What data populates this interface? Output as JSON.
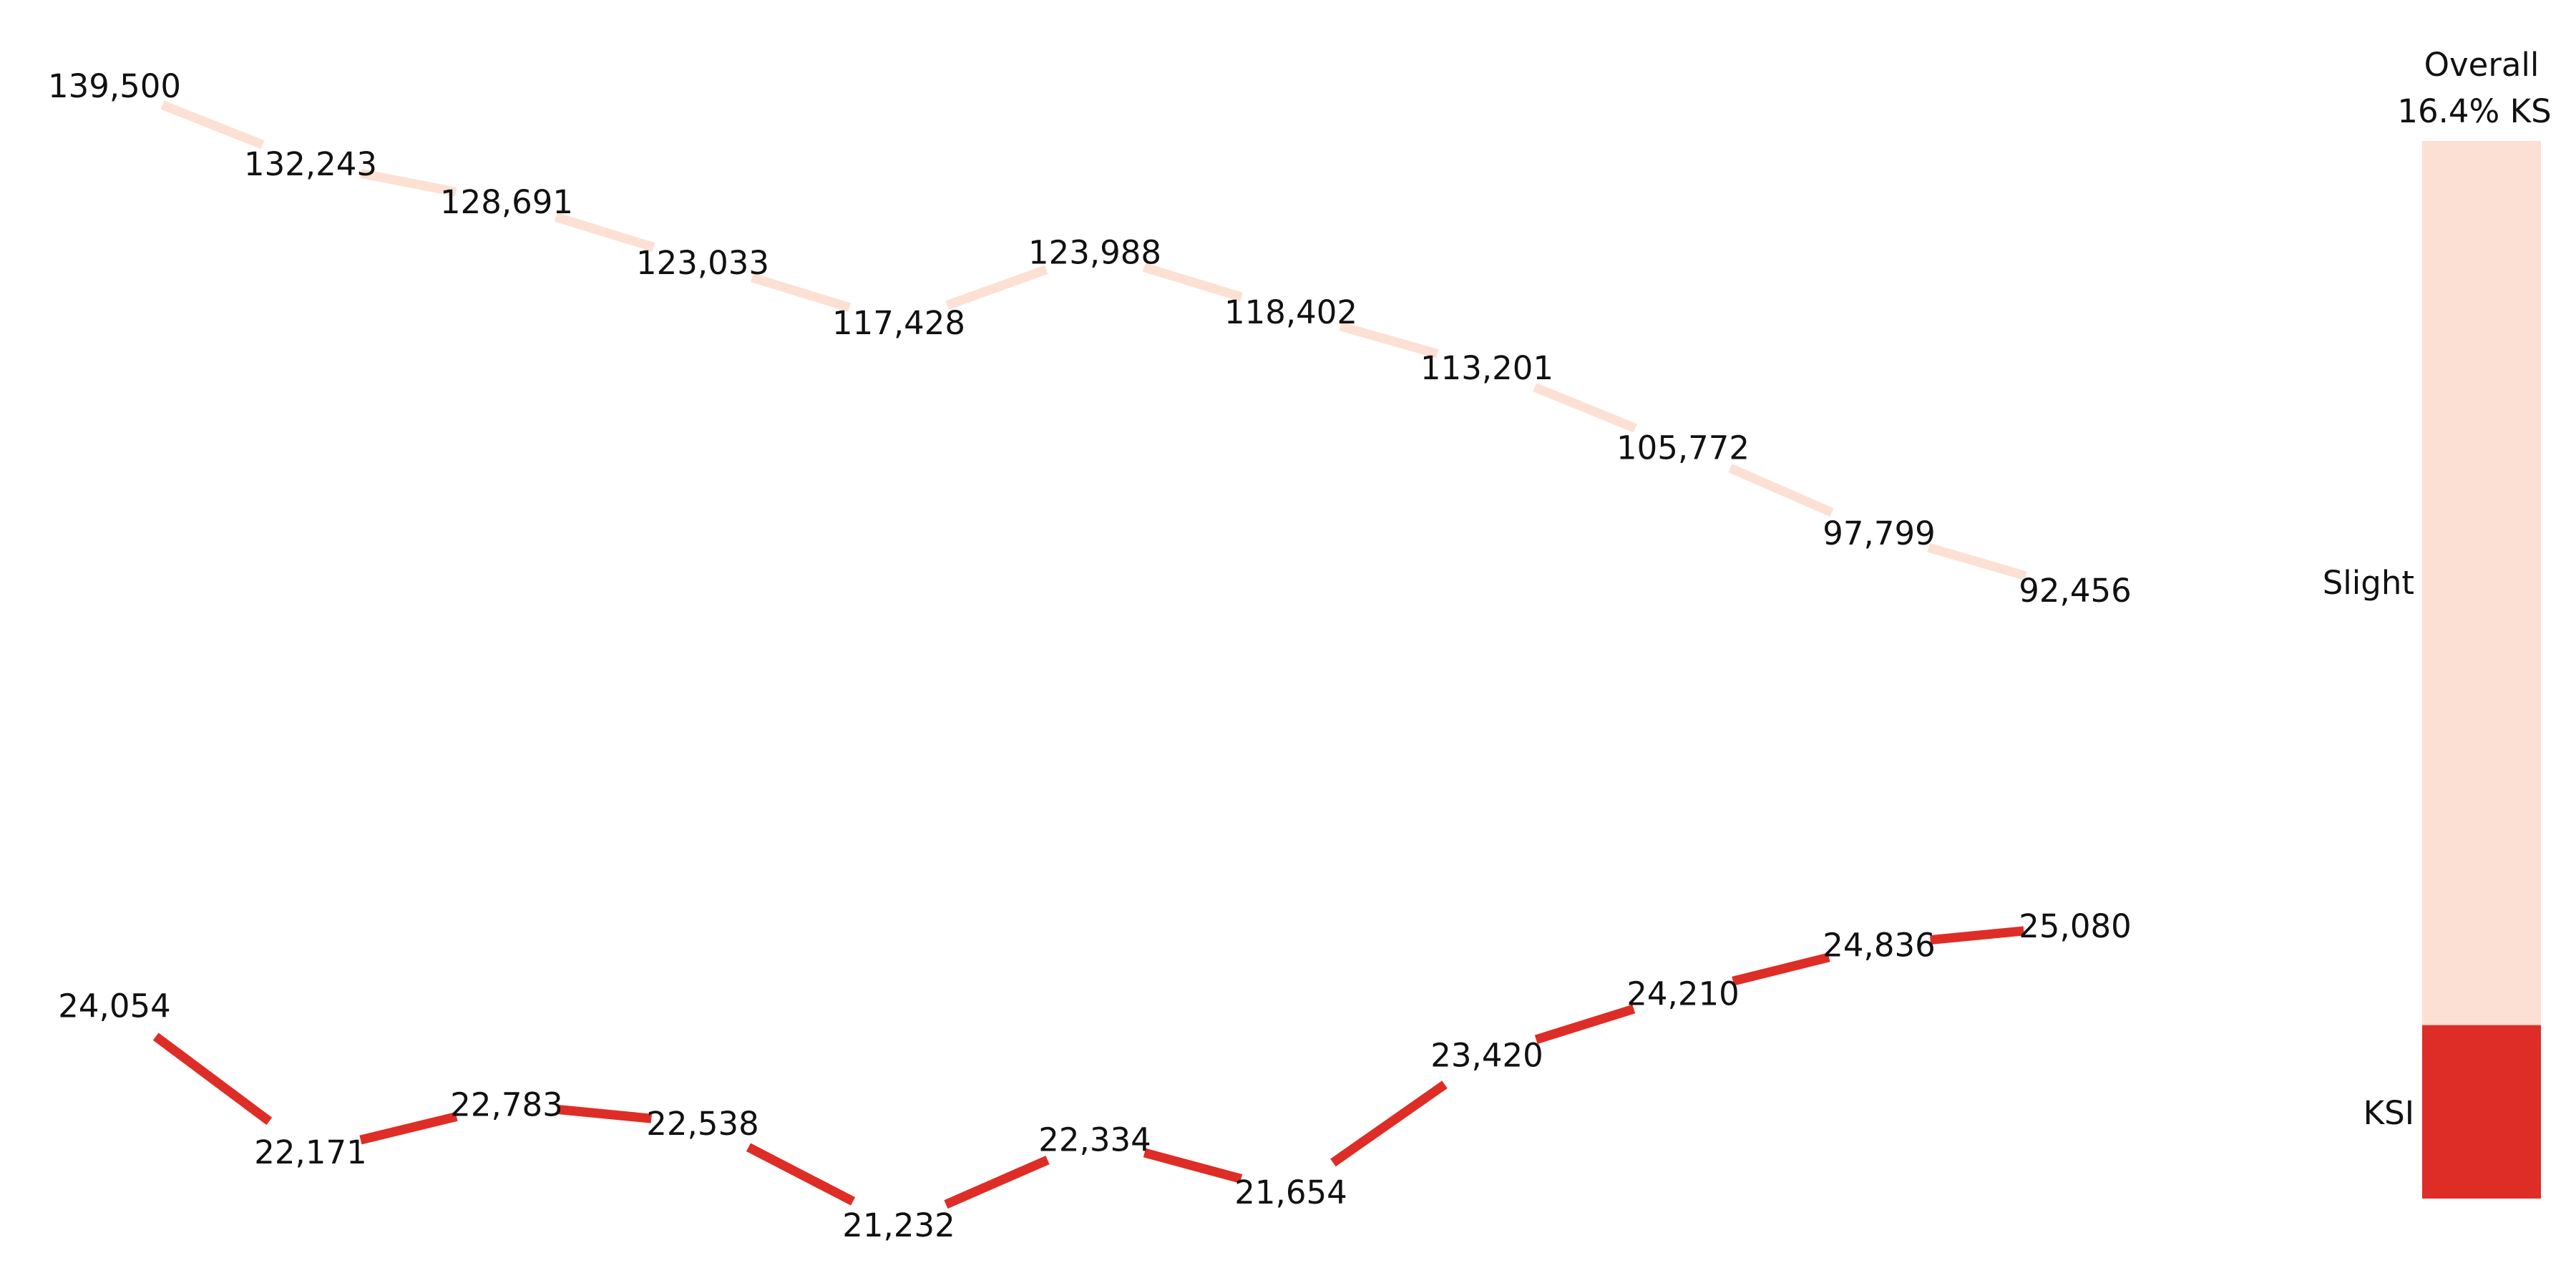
{
  "chart_data": {
    "type": "line",
    "x": [
      1,
      2,
      3,
      4,
      5,
      6,
      7,
      8,
      9,
      10,
      11
    ],
    "series": [
      {
        "name": "Slight",
        "color": "#fde0d4",
        "values": [
          139500,
          132243,
          128691,
          123033,
          117428,
          123988,
          118402,
          113201,
          105772,
          97799,
          92456
        ],
        "labels": [
          "139,500",
          "132,243",
          "128,691",
          "123,033",
          "117,428",
          "123,988",
          "118,402",
          "113,201",
          "105,772",
          "97,799",
          "92,456"
        ]
      },
      {
        "name": "KSI",
        "color": "#de2d26",
        "values": [
          24054,
          22171,
          22783,
          22538,
          21232,
          22334,
          21654,
          23420,
          24210,
          24836,
          25080
        ],
        "labels": [
          "24,054",
          "22,171",
          "22,783",
          "22,538",
          "21,232",
          "22,334",
          "21,654",
          "23,420",
          "24,210",
          "24,836",
          "25,080"
        ]
      }
    ],
    "overall": {
      "title_line1": "Overall",
      "title_line2": "16.4% KS",
      "ksi_share": 0.164,
      "segments": [
        {
          "name": "Slight",
          "color": "#fde0d4"
        },
        {
          "name": "KSI",
          "color": "#de2d26"
        }
      ]
    },
    "grid": false,
    "legend": "none"
  }
}
